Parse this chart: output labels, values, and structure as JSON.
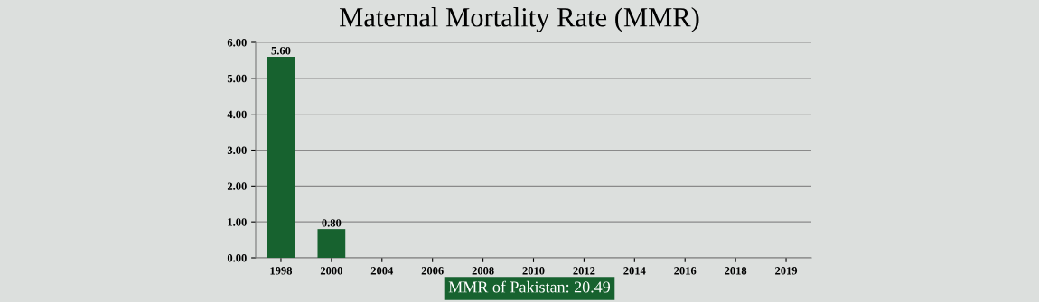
{
  "chart_data": {
    "type": "bar",
    "title": "Maternal Mortality Rate (MMR)",
    "categories": [
      "1998",
      "2000",
      "2004",
      "2006",
      "2008",
      "2010",
      "2012",
      "2014",
      "2016",
      "2018",
      "2019"
    ],
    "values": [
      5.6,
      0.8,
      0,
      0,
      0,
      0,
      0,
      0,
      0,
      0,
      0
    ],
    "value_labels": [
      "5.60",
      "0.80",
      null,
      null,
      null,
      null,
      null,
      null,
      null,
      null,
      null
    ],
    "color": "#17622f",
    "ylim": [
      0,
      6
    ],
    "yticks": [
      {
        "value": 0,
        "label": "0.00"
      },
      {
        "value": 1,
        "label": "1.00"
      },
      {
        "value": 2,
        "label": "2.00"
      },
      {
        "value": 3,
        "label": "3.00"
      },
      {
        "value": 4,
        "label": "4.00"
      },
      {
        "value": 5,
        "label": "5.00"
      },
      {
        "value": 6,
        "label": "6.00"
      }
    ],
    "grid": "y",
    "annotations": [
      "MMR of Pakistan: 20.49"
    ]
  }
}
